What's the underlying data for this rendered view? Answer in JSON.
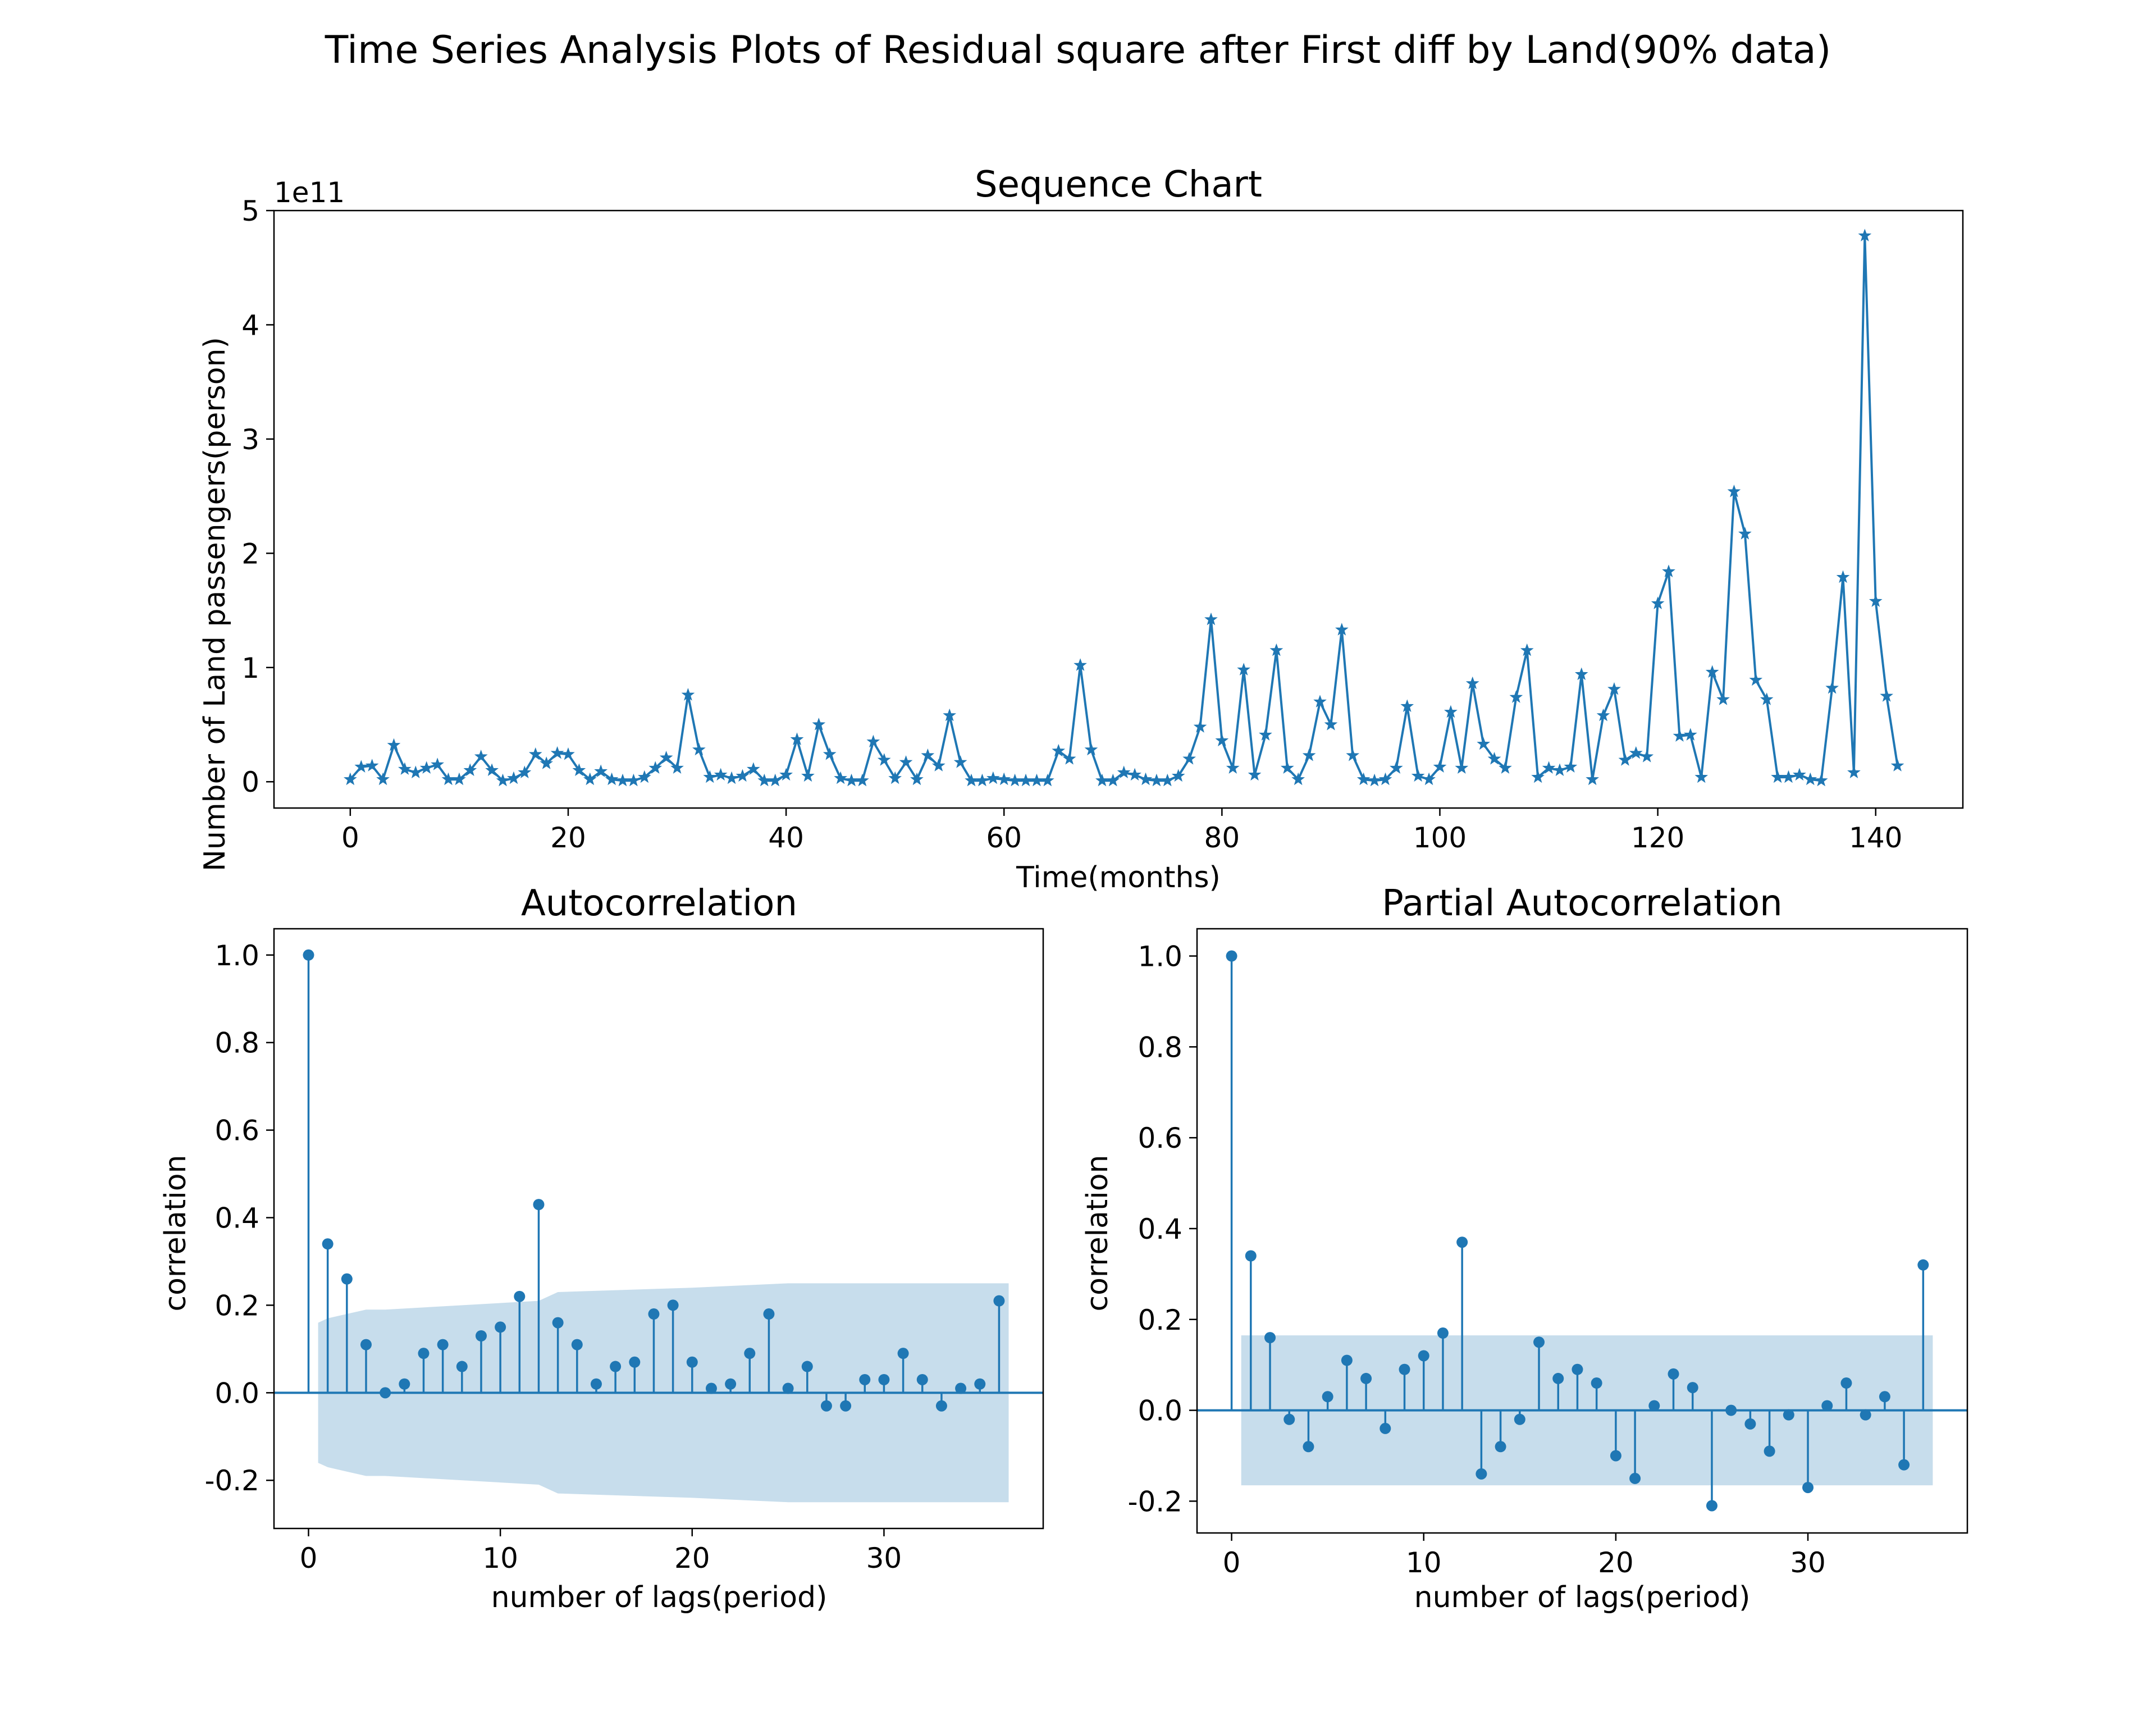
{
  "figure": {
    "suptitle": "Time Series Analysis Plots of Residual square after First diff by Land(90% data)"
  },
  "chart_data": [
    {
      "type": "line",
      "title": "Sequence Chart",
      "xlabel": "Time(months)",
      "ylabel": "Number of Land passengers(person)",
      "offset_label": "1e11",
      "y_scale_multiplier": 100000000000,
      "xlim": [
        -7,
        148
      ],
      "ylim": [
        -0.23,
        5.0
      ],
      "xticks": [
        0,
        20,
        40,
        60,
        80,
        100,
        120,
        140
      ],
      "yticks": [
        0,
        1,
        2,
        3,
        4,
        5
      ],
      "marker": "star",
      "color": "#1f77b4",
      "x_start": 0,
      "values": [
        0.02,
        0.13,
        0.14,
        0.02,
        0.32,
        0.11,
        0.08,
        0.12,
        0.15,
        0.02,
        0.02,
        0.1,
        0.22,
        0.1,
        0.01,
        0.03,
        0.08,
        0.24,
        0.16,
        0.25,
        0.24,
        0.1,
        0.02,
        0.09,
        0.02,
        0.01,
        0.01,
        0.04,
        0.12,
        0.21,
        0.12,
        0.76,
        0.28,
        0.04,
        0.06,
        0.03,
        0.05,
        0.11,
        0.01,
        0.01,
        0.06,
        0.37,
        0.05,
        0.5,
        0.24,
        0.03,
        0.01,
        0.01,
        0.35,
        0.19,
        0.03,
        0.17,
        0.02,
        0.23,
        0.14,
        0.58,
        0.17,
        0.01,
        0.01,
        0.03,
        0.02,
        0.01,
        0.01,
        0.01,
        0.01,
        0.27,
        0.2,
        1.02,
        0.28,
        0.01,
        0.01,
        0.08,
        0.06,
        0.02,
        0.01,
        0.01,
        0.05,
        0.2,
        0.48,
        1.42,
        0.36,
        0.12,
        0.98,
        0.06,
        0.41,
        1.15,
        0.12,
        0.02,
        0.23,
        0.7,
        0.5,
        1.33,
        0.23,
        0.02,
        0.01,
        0.02,
        0.12,
        0.66,
        0.05,
        0.02,
        0.13,
        0.61,
        0.12,
        0.86,
        0.33,
        0.2,
        0.12,
        0.74,
        1.15,
        0.04,
        0.12,
        0.1,
        0.13,
        0.94,
        0.02,
        0.58,
        0.81,
        0.19,
        0.25,
        0.22,
        1.56,
        1.84,
        0.4,
        0.41,
        0.04,
        0.96,
        0.72,
        2.54,
        2.17,
        0.89,
        0.72,
        0.04,
        0.04,
        0.06,
        0.02,
        0.01,
        0.82,
        1.79,
        0.08,
        4.78,
        1.58,
        0.75,
        0.14
      ]
    },
    {
      "type": "stem",
      "title": "Autocorrelation",
      "xlabel": "number of lags(period)",
      "ylabel": "correlation",
      "xlim": [
        -1.8,
        38.3
      ],
      "ylim": [
        -0.31,
        1.06
      ],
      "xticks": [
        0,
        10,
        20,
        30
      ],
      "yticks": [
        -0.2,
        0.0,
        0.2,
        0.4,
        0.6,
        0.8,
        1.0
      ],
      "ytick_labels": [
        "-0.2",
        "0.0",
        "0.2",
        "0.4",
        "0.6",
        "0.8",
        "1.0"
      ],
      "color": "#1f77b4",
      "values": [
        1.0,
        0.34,
        0.26,
        0.11,
        0.0,
        0.02,
        0.09,
        0.11,
        0.06,
        0.13,
        0.15,
        0.22,
        0.43,
        0.16,
        0.11,
        0.02,
        0.06,
        0.07,
        0.18,
        0.2,
        0.07,
        0.01,
        0.02,
        0.09,
        0.18,
        0.01,
        0.06,
        -0.03,
        -0.03,
        0.03,
        0.03,
        0.09,
        0.03,
        -0.03,
        0.01,
        0.02,
        0.21
      ],
      "confint": {
        "x": [
          0.5,
          1,
          2,
          3,
          4,
          12,
          13,
          20,
          25,
          36,
          36.5
        ],
        "upper": [
          0.16,
          0.17,
          0.18,
          0.19,
          0.19,
          0.21,
          0.23,
          0.24,
          0.25,
          0.25,
          0.25
        ]
      }
    },
    {
      "type": "stem",
      "title": "Partial Autocorrelation",
      "xlabel": "number of lags(period)",
      "ylabel": "correlation",
      "xlim": [
        -1.8,
        38.3
      ],
      "ylim": [
        -0.27,
        1.06
      ],
      "xticks": [
        0,
        10,
        20,
        30
      ],
      "yticks": [
        -0.2,
        0.0,
        0.2,
        0.4,
        0.6,
        0.8,
        1.0
      ],
      "ytick_labels": [
        "-0.2",
        "0.0",
        "0.2",
        "0.4",
        "0.6",
        "0.8",
        "1.0"
      ],
      "color": "#1f77b4",
      "values": [
        1.0,
        0.34,
        0.16,
        -0.02,
        -0.08,
        0.03,
        0.11,
        0.07,
        -0.04,
        0.09,
        0.12,
        0.17,
        0.37,
        -0.14,
        -0.08,
        -0.02,
        0.15,
        0.07,
        0.09,
        0.06,
        -0.1,
        -0.15,
        0.01,
        0.08,
        0.05,
        -0.21,
        0.0,
        -0.03,
        -0.09,
        -0.01,
        -0.17,
        0.01,
        0.06,
        -0.01,
        0.03,
        -0.12,
        0.32
      ],
      "confint": {
        "x": [
          0.5,
          36.5
        ],
        "upper": [
          0.165,
          0.165
        ]
      }
    }
  ]
}
